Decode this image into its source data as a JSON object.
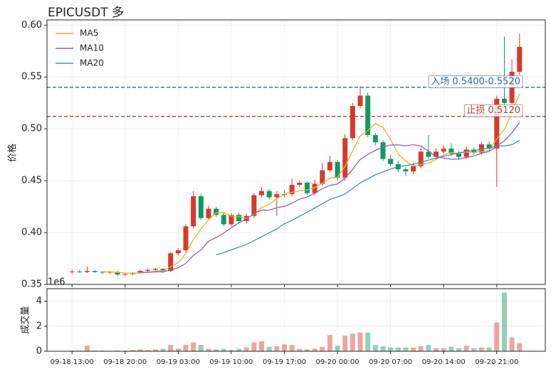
{
  "chart_data": {
    "type": "candlestick",
    "title": "EPICUSDT 多",
    "ylabel": "价格",
    "up_color": "#d9382c",
    "down_color": "#0f9960",
    "grid": true,
    "legend": "upper left",
    "categories": [
      "09-18 13:00",
      null,
      null,
      null,
      null,
      null,
      null,
      "09-18 20:00",
      null,
      null,
      null,
      null,
      null,
      null,
      "09-19 03:00",
      null,
      null,
      null,
      null,
      null,
      null,
      "09-19 10:00",
      null,
      null,
      null,
      null,
      null,
      null,
      "09-19 17:00",
      null,
      null,
      null,
      null,
      null,
      null,
      "09-20 00:00",
      null,
      null,
      null,
      null,
      null,
      null,
      "09-20 07:00",
      null,
      null,
      null,
      null,
      null,
      null,
      "09-20 14:00",
      null,
      null,
      null,
      null,
      null,
      null,
      "09-20 21:00",
      null,
      null,
      null
    ],
    "xlim": [
      -3.3,
      62.4
    ],
    "ylim": [
      0.35,
      0.605
    ],
    "yticks": [
      {
        "value": 0.35,
        "label": "0.35"
      },
      {
        "value": 0.4,
        "label": "0.40"
      },
      {
        "value": 0.45,
        "label": "0.45"
      },
      {
        "value": 0.5,
        "label": "0.50"
      },
      {
        "value": 0.55,
        "label": "0.55"
      },
      {
        "value": 0.6,
        "label": "0.60"
      }
    ],
    "open": [
      0.362,
      0.3625,
      0.362,
      0.363,
      0.362,
      0.3615,
      0.362,
      0.3595,
      0.36,
      0.361,
      0.363,
      0.364,
      0.365,
      0.363,
      0.38,
      0.383,
      0.406,
      0.435,
      0.414,
      0.423,
      0.417,
      0.408,
      0.417,
      0.411,
      0.416,
      0.436,
      0.44,
      0.434,
      0.437,
      0.437,
      0.446,
      0.448,
      0.438,
      0.447,
      0.46,
      0.468,
      0.453,
      0.491,
      0.522,
      0.532,
      0.494,
      0.487,
      0.471,
      0.466,
      0.461,
      0.459,
      0.464,
      0.478,
      0.473,
      0.478,
      0.481,
      0.476,
      0.473,
      0.48,
      0.477,
      0.485,
      0.481,
      0.529,
      0.525,
      0.555
    ],
    "high": [
      0.364,
      0.364,
      0.367,
      0.364,
      0.363,
      0.363,
      0.363,
      0.361,
      0.362,
      0.364,
      0.365,
      0.366,
      0.366,
      0.381,
      0.385,
      0.408,
      0.44,
      0.437,
      0.426,
      0.425,
      0.419,
      0.419,
      0.419,
      0.418,
      0.438,
      0.444,
      0.442,
      0.44,
      0.441,
      0.452,
      0.45,
      0.449,
      0.451,
      0.467,
      0.474,
      0.47,
      0.495,
      0.525,
      0.541,
      0.535,
      0.496,
      0.489,
      0.475,
      0.469,
      0.463,
      0.467,
      0.482,
      0.494,
      0.481,
      0.484,
      0.486,
      0.479,
      0.483,
      0.482,
      0.487,
      0.488,
      0.532,
      0.589,
      0.567,
      0.592
    ],
    "low": [
      0.36,
      0.361,
      0.361,
      0.361,
      0.36,
      0.36,
      0.358,
      0.358,
      0.359,
      0.36,
      0.362,
      0.363,
      0.361,
      0.362,
      0.378,
      0.381,
      0.404,
      0.412,
      0.412,
      0.415,
      0.406,
      0.406,
      0.409,
      0.409,
      0.414,
      0.434,
      0.432,
      0.416,
      0.434,
      0.435,
      0.444,
      0.436,
      0.436,
      0.445,
      0.458,
      0.45,
      0.45,
      0.489,
      0.52,
      0.492,
      0.484,
      0.469,
      0.464,
      0.458,
      0.455,
      0.456,
      0.462,
      0.471,
      0.47,
      0.476,
      0.474,
      0.47,
      0.471,
      0.475,
      0.475,
      0.479,
      0.444,
      0.52,
      0.523,
      0.552
    ],
    "close": [
      0.3625,
      0.362,
      0.363,
      0.362,
      0.3615,
      0.362,
      0.3595,
      0.36,
      0.361,
      0.363,
      0.364,
      0.365,
      0.363,
      0.38,
      0.383,
      0.406,
      0.435,
      0.414,
      0.423,
      0.417,
      0.408,
      0.417,
      0.411,
      0.416,
      0.436,
      0.44,
      0.434,
      0.437,
      0.437,
      0.446,
      0.448,
      0.438,
      0.447,
      0.46,
      0.468,
      0.453,
      0.491,
      0.522,
      0.532,
      0.494,
      0.487,
      0.471,
      0.466,
      0.461,
      0.459,
      0.464,
      0.478,
      0.473,
      0.478,
      0.481,
      0.476,
      0.473,
      0.48,
      0.477,
      0.485,
      0.481,
      0.529,
      0.525,
      0.555,
      0.579
    ],
    "series": [
      {
        "name": "MA5",
        "color": "#e6b422",
        "values": [
          null,
          null,
          null,
          null,
          0.3622,
          0.3621,
          0.3616,
          0.361,
          0.3608,
          0.3611,
          0.3615,
          0.3626,
          0.3632,
          0.367,
          0.371,
          0.3794,
          0.3934,
          0.4036,
          0.4122,
          0.419,
          0.4194,
          0.4158,
          0.4152,
          0.4138,
          0.4176,
          0.424,
          0.4274,
          0.4326,
          0.4368,
          0.4388,
          0.4404,
          0.4412,
          0.4432,
          0.4478,
          0.4522,
          0.4532,
          0.4638,
          0.4788,
          0.4932,
          0.4984,
          0.5052,
          0.5012,
          0.49,
          0.4758,
          0.4688,
          0.4642,
          0.4656,
          0.467,
          0.4704,
          0.4748,
          0.4772,
          0.4762,
          0.4776,
          0.4774,
          0.4782,
          0.4792,
          0.4904,
          0.4994,
          0.515,
          0.5338
        ]
      },
      {
        "name": "MA10",
        "color": "#8a5fc9",
        "values": [
          null,
          null,
          null,
          null,
          null,
          null,
          null,
          null,
          null,
          0.3617,
          0.3618,
          0.3621,
          0.3621,
          0.3639,
          0.366,
          0.3703,
          0.378,
          0.3831,
          0.3916,
          0.3952,
          0.3994,
          0.4046,
          0.4094,
          0.413,
          0.4183,
          0.4217,
          0.4216,
          0.4239,
          0.4253,
          0.4282,
          0.4322,
          0.4343,
          0.4379,
          0.4423,
          0.4455,
          0.4468,
          0.4525,
          0.461,
          0.4705,
          0.4753,
          0.4792,
          0.4825,
          0.4844,
          0.4845,
          0.4836,
          0.4847,
          0.4834,
          0.4785,
          0.4731,
          0.4718,
          0.4707,
          0.4709,
          0.4723,
          0.4739,
          0.4765,
          0.4782,
          0.4833,
          0.4885,
          0.4962,
          0.506
        ]
      },
      {
        "name": "MA20",
        "color": "#3f8ccc",
        "values": [
          null,
          null,
          null,
          null,
          null,
          null,
          null,
          null,
          null,
          null,
          null,
          null,
          null,
          null,
          null,
          null,
          null,
          null,
          null,
          0.3785,
          0.3806,
          0.3834,
          0.3858,
          0.3885,
          0.3922,
          0.396,
          0.3998,
          0.4035,
          0.4085,
          0.4117,
          0.4158,
          0.4195,
          0.4237,
          0.4277,
          0.4319,
          0.4343,
          0.4371,
          0.4425,
          0.4479,
          0.4518,
          0.4557,
          0.4584,
          0.4612,
          0.4634,
          0.4646,
          0.4658,
          0.468,
          0.4698,
          0.4718,
          0.4736,
          0.475,
          0.4767,
          0.4784,
          0.4792,
          0.4801,
          0.4815,
          0.4834,
          0.4835,
          0.4847,
          0.4889
        ]
      }
    ],
    "lines": [
      {
        "value": 0.54,
        "label": "入场 0.5400-0.5520",
        "color": "#2a6a9e"
      },
      {
        "value": 0.512,
        "label": "止损 0.5120",
        "color": "#b03a3a"
      }
    ],
    "volume": {
      "ylabel": "成交量",
      "offset_label": "1e6",
      "ylim": [
        0,
        5
      ],
      "yticks": [
        0,
        2,
        4
      ],
      "values": [
        0.05,
        0.05,
        0.45,
        0.05,
        0.05,
        0.03,
        0.05,
        0.05,
        0.1,
        0.15,
        0.1,
        0.15,
        0.2,
        0.5,
        0.2,
        0.5,
        0.7,
        0.5,
        0.2,
        0.15,
        0.2,
        0.1,
        0.2,
        0.3,
        0.7,
        0.8,
        0.35,
        0.4,
        0.55,
        0.5,
        0.2,
        0.15,
        0.2,
        0.35,
        1.3,
        0.45,
        1.25,
        1.4,
        1.5,
        1.5,
        0.5,
        0.4,
        0.3,
        0.3,
        0.3,
        0.3,
        0.4,
        0.5,
        0.25,
        0.25,
        0.35,
        0.25,
        0.45,
        0.25,
        0.3,
        0.3,
        2.3,
        4.7,
        1.1,
        0.65
      ]
    }
  }
}
